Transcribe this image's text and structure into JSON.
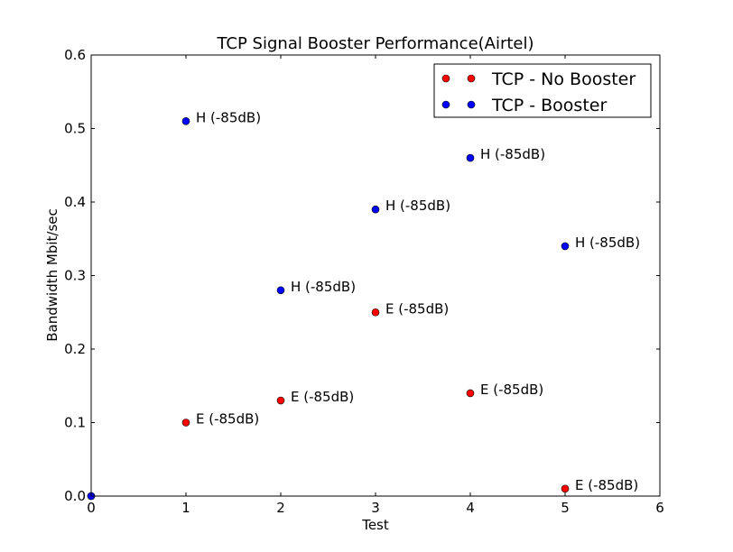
{
  "chart_data": {
    "type": "scatter",
    "title": "TCP Signal Booster Performance(Airtel)",
    "xlabel": "Test",
    "ylabel": "Bandwidth Mbit/sec",
    "xlim": [
      0,
      6
    ],
    "ylim": [
      0,
      0.6
    ],
    "xticks": [
      "0",
      "1",
      "2",
      "3",
      "4",
      "5",
      "6"
    ],
    "yticks": [
      "0.0",
      "0.1",
      "0.2",
      "0.3",
      "0.4",
      "0.5",
      "0.6"
    ],
    "grid": false,
    "legend_position": "top-right",
    "series": [
      {
        "name": "TCP - No Booster",
        "color": "#ff0000",
        "points": [
          {
            "x": 0,
            "y": 0.0,
            "label": ""
          },
          {
            "x": 1,
            "y": 0.1,
            "label": "E (-85dB)"
          },
          {
            "x": 2,
            "y": 0.13,
            "label": "E (-85dB)"
          },
          {
            "x": 3,
            "y": 0.25,
            "label": "E (-85dB)"
          },
          {
            "x": 4,
            "y": 0.14,
            "label": "E (-85dB)"
          },
          {
            "x": 5,
            "y": 0.01,
            "label": "E (-85dB)"
          }
        ]
      },
      {
        "name": "TCP - Booster",
        "color": "#0000ff",
        "points": [
          {
            "x": 0,
            "y": 0.0,
            "label": ""
          },
          {
            "x": 1,
            "y": 0.51,
            "label": "H (-85dB)"
          },
          {
            "x": 2,
            "y": 0.28,
            "label": "H (-85dB)"
          },
          {
            "x": 3,
            "y": 0.39,
            "label": "H (-85dB)"
          },
          {
            "x": 4,
            "y": 0.46,
            "label": "H (-85dB)"
          },
          {
            "x": 5,
            "y": 0.34,
            "label": "H (-85dB)"
          }
        ]
      }
    ]
  }
}
